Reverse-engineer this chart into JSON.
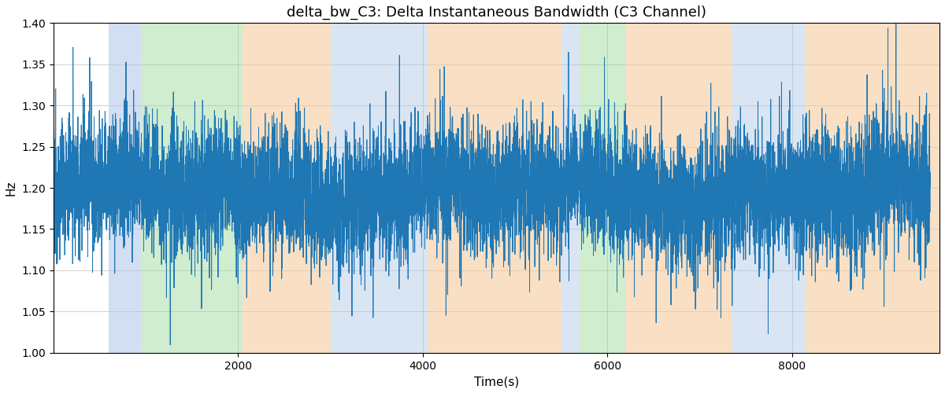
{
  "title": "delta_bw_C3: Delta Instantaneous Bandwidth (C3 Channel)",
  "xlabel": "Time(s)",
  "ylabel": "Hz",
  "ylim": [
    1.0,
    1.4
  ],
  "xlim": [
    0,
    9600
  ],
  "yticks": [
    1.0,
    1.05,
    1.1,
    1.15,
    1.2,
    1.25,
    1.3,
    1.35,
    1.4
  ],
  "xticks": [
    2000,
    4000,
    6000,
    8000
  ],
  "line_color": "#1f77b4",
  "bg_color": "#ffffff",
  "bands": [
    {
      "xmin": 600,
      "xmax": 950,
      "color": "#aec6e8",
      "alpha": 0.55
    },
    {
      "xmin": 950,
      "xmax": 2050,
      "color": "#98d898",
      "alpha": 0.45
    },
    {
      "xmin": 2050,
      "xmax": 3000,
      "color": "#f5c896",
      "alpha": 0.55
    },
    {
      "xmin": 3000,
      "xmax": 4050,
      "color": "#aec6e8",
      "alpha": 0.45
    },
    {
      "xmin": 4050,
      "xmax": 5500,
      "color": "#f5c896",
      "alpha": 0.55
    },
    {
      "xmin": 5500,
      "xmax": 5700,
      "color": "#aec6e8",
      "alpha": 0.45
    },
    {
      "xmin": 5700,
      "xmax": 6200,
      "color": "#98d898",
      "alpha": 0.45
    },
    {
      "xmin": 6200,
      "xmax": 7350,
      "color": "#f5c896",
      "alpha": 0.55
    },
    {
      "xmin": 7350,
      "xmax": 8150,
      "color": "#aec6e8",
      "alpha": 0.45
    },
    {
      "xmin": 8150,
      "xmax": 9600,
      "color": "#f5c896",
      "alpha": 0.55
    }
  ],
  "n_points": 9500,
  "signal_mean": 1.195,
  "signal_std": 0.038,
  "spike_prob": 0.04,
  "spike_scale": 0.06,
  "title_fontsize": 13,
  "label_fontsize": 11
}
